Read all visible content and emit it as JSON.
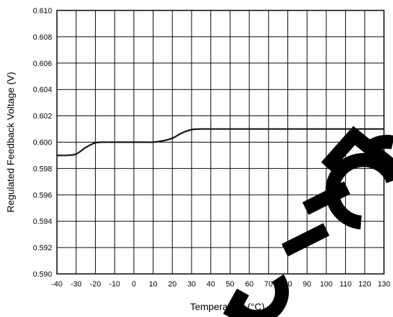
{
  "chart_data": {
    "type": "line",
    "title": "",
    "xlabel": "Temperature (°C)",
    "ylabel": "Regulated Feedback Voltage (V)",
    "xlim": [
      -40,
      130
    ],
    "ylim": [
      0.59,
      0.61
    ],
    "x_ticks": [
      "-40",
      "-30",
      "-20",
      "-10",
      "0",
      "10",
      "20",
      "30",
      "40",
      "50",
      "60",
      "70",
      "80",
      "90",
      "100",
      "110",
      "120",
      "130"
    ],
    "y_ticks": [
      "0.590",
      "0.592",
      "0.594",
      "0.596",
      "0.598",
      "0.600",
      "0.602",
      "0.604",
      "0.606",
      "0.608",
      "0.610"
    ],
    "grid": true,
    "series": [
      {
        "x": [
          -40,
          -35,
          -30,
          -25,
          -20,
          -15,
          -10,
          -5,
          0,
          5,
          10,
          15,
          20,
          25,
          30,
          35,
          40,
          50,
          60,
          70,
          80,
          90,
          100,
          110,
          120,
          130
        ],
        "y": [
          0.599,
          0.599,
          0.5991,
          0.5996,
          0.59995,
          0.6,
          0.6,
          0.6,
          0.6,
          0.6,
          0.6,
          0.6001,
          0.6003,
          0.6007,
          0.60095,
          0.601,
          0.601,
          0.601,
          0.601,
          0.601,
          0.601,
          0.601,
          0.601,
          0.601,
          0.601,
          0.601
        ]
      }
    ]
  }
}
